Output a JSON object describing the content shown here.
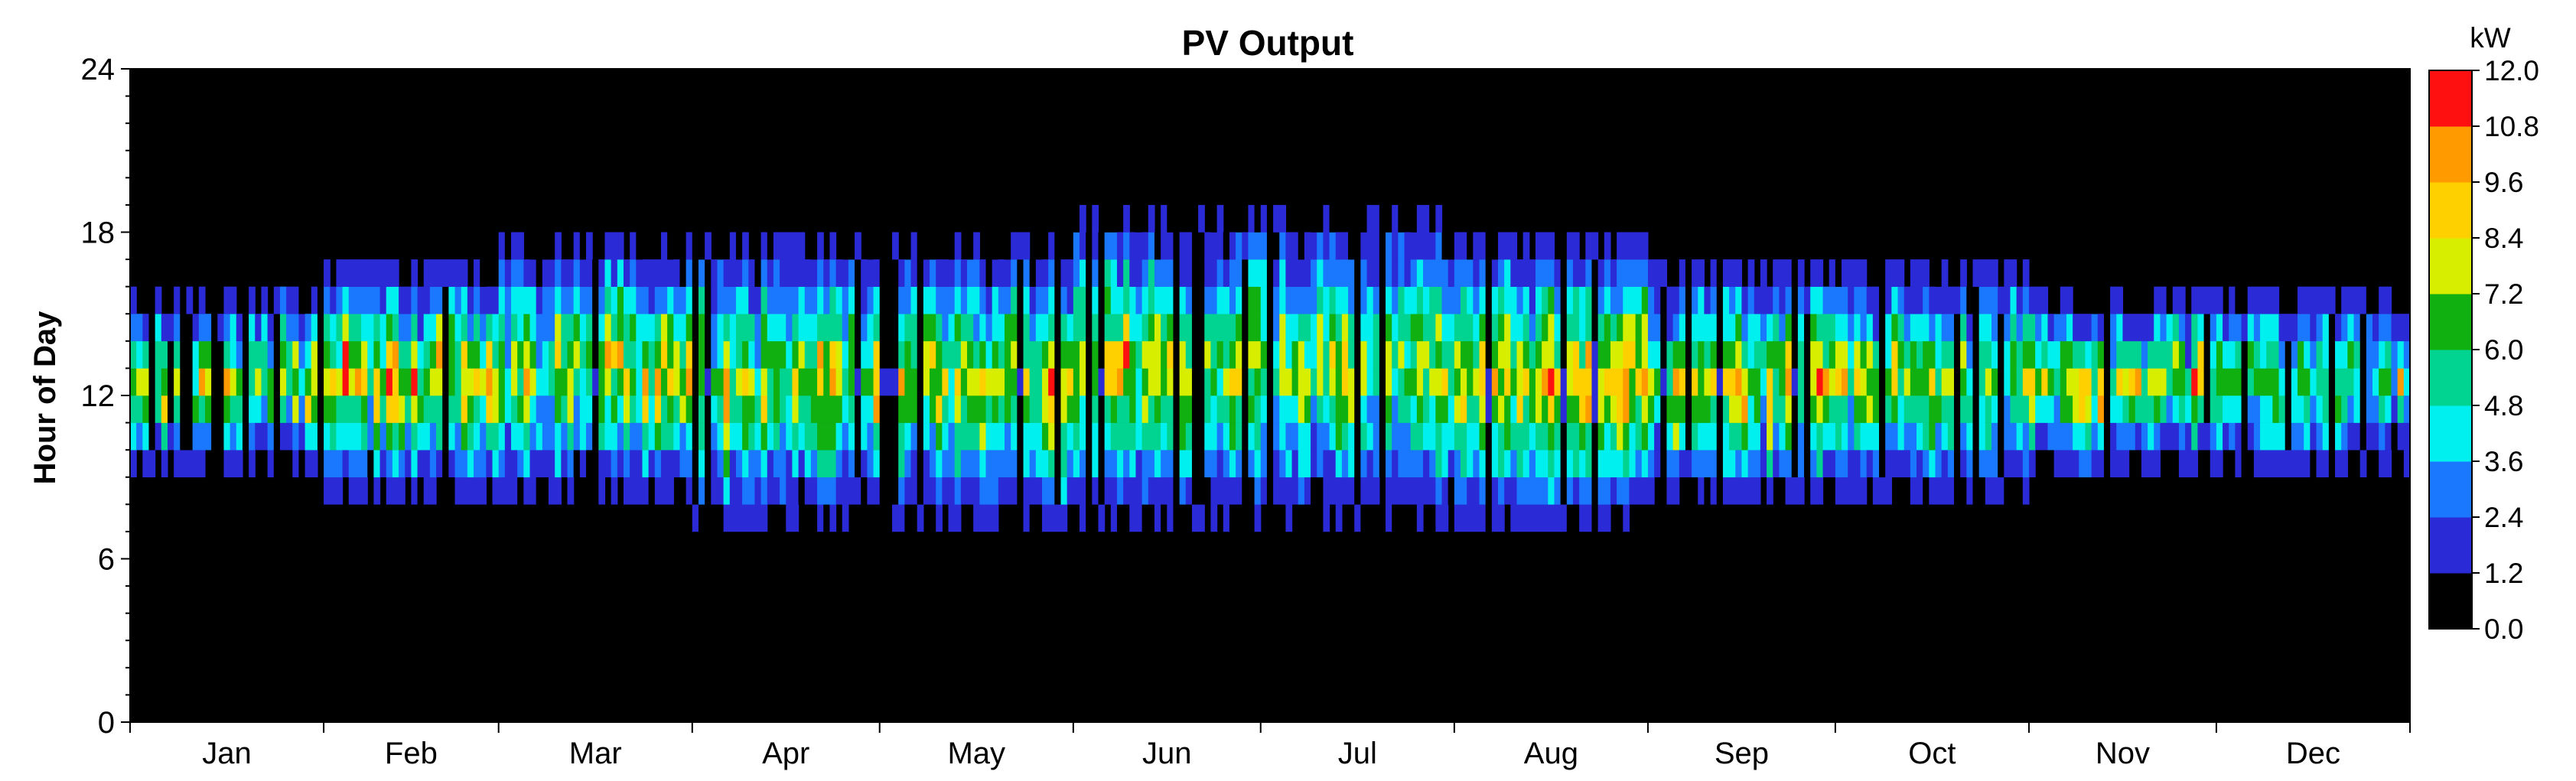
{
  "chart_data": {
    "type": "heatmap",
    "title": "PV Output",
    "xlabel": "",
    "ylabel": "Hour of Day",
    "x_categories": [
      "Jan",
      "Feb",
      "Mar",
      "Apr",
      "May",
      "Jun",
      "Jul",
      "Aug",
      "Sep",
      "Oct",
      "Nov",
      "Dec"
    ],
    "days_per_month": [
      31,
      28,
      31,
      30,
      31,
      30,
      31,
      31,
      30,
      31,
      30,
      31
    ],
    "x_range_days": [
      0,
      365
    ],
    "y_ticks": [
      0,
      6,
      12,
      18,
      24
    ],
    "ylim": [
      0,
      24
    ],
    "grid": false,
    "background_color": "#000000",
    "colorbar": {
      "unit": "kW",
      "range": [
        0,
        12
      ],
      "ticks": [
        "0.0",
        "1.2",
        "2.4",
        "3.6",
        "4.8",
        "6.0",
        "7.2",
        "8.4",
        "9.6",
        "10.8",
        "12.0"
      ],
      "colors": [
        "#000000",
        "#2a2ad6",
        "#1a78ff",
        "#00f0f0",
        "#00d490",
        "#10b010",
        "#d8ee00",
        "#ffd000",
        "#ff9a00",
        "#ff1010"
      ],
      "placement": "right"
    },
    "monthly_daylight_hours": [
      {
        "month": "Jan",
        "start_hour": 9,
        "end_hour": 16
      },
      {
        "month": "Feb",
        "start_hour": 8,
        "end_hour": 17
      },
      {
        "month": "Mar",
        "start_hour": 8,
        "end_hour": 18
      },
      {
        "month": "Apr",
        "start_hour": 7,
        "end_hour": 18
      },
      {
        "month": "May",
        "start_hour": 7,
        "end_hour": 18
      },
      {
        "month": "Jun",
        "start_hour": 7,
        "end_hour": 19
      },
      {
        "month": "Jul",
        "start_hour": 7,
        "end_hour": 19
      },
      {
        "month": "Aug",
        "start_hour": 7,
        "end_hour": 18
      },
      {
        "month": "Sep",
        "start_hour": 8,
        "end_hour": 17
      },
      {
        "month": "Oct",
        "start_hour": 8,
        "end_hour": 17
      },
      {
        "month": "Nov",
        "start_hour": 9,
        "end_hour": 16
      },
      {
        "month": "Dec",
        "start_hour": 9,
        "end_hour": 16
      }
    ],
    "monthly_peak_kw": [
      {
        "month": "Jan",
        "peak_kw": 9.0
      },
      {
        "month": "Feb",
        "peak_kw": 10.5
      },
      {
        "month": "Mar",
        "peak_kw": 9.6
      },
      {
        "month": "Apr",
        "peak_kw": 10.0
      },
      {
        "month": "May",
        "peak_kw": 9.6
      },
      {
        "month": "Jun",
        "peak_kw": 9.0
      },
      {
        "month": "Jul",
        "peak_kw": 9.0
      },
      {
        "month": "Aug",
        "peak_kw": 10.5
      },
      {
        "month": "Sep",
        "peak_kw": 10.5
      },
      {
        "month": "Oct",
        "peak_kw": 9.0
      },
      {
        "month": "Nov",
        "peak_kw": 10.0
      },
      {
        "month": "Dec",
        "peak_kw": 8.0
      }
    ]
  }
}
